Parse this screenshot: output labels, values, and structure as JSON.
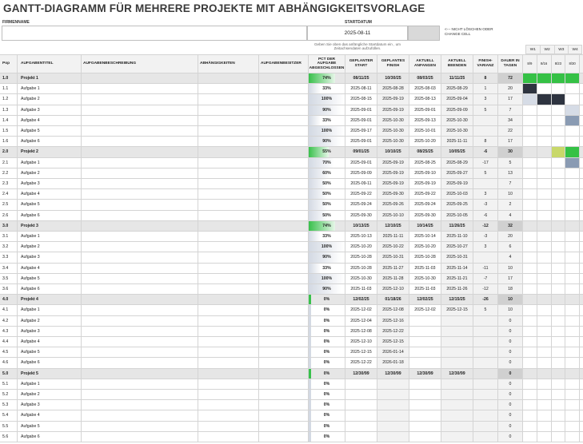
{
  "title": "GANTT-DIAGRAMM FÜR MEHRERE PROJEKTE MIT ABHÄNGIGKEITSVORLAGE",
  "firmenname_label": "FIRMENNAME",
  "startdatum_label": "STARTDATUM",
  "startdatum_value": "2025-08-11",
  "clear_note": "<--- NICHT LÖSCHEN ODER CHANGE CELL",
  "start_note": "Geben Sie oben das anfängliche Startdatum ein , um Zeitachsendaten aufzufüllen.",
  "headers": {
    "num": "Pop",
    "title": "AUFGABENTITEL",
    "desc": "AUFGABENBESCHREIBUNG",
    "dep": "ABHÄNGIGKEITEN",
    "owner": "AUFGABENBESITZER",
    "pct": "PCT DER AUFGABE ABGESCHLOSSEN",
    "ps": "GEPLANTER START",
    "pf": "GEPLANTES FINISH",
    "as": "AKTUELL ANFANGEN",
    "af": "AKTUELL BEENDEN",
    "var": "FINISH-VARIANZ",
    "dur": "DAUER IN TAGEN"
  },
  "weeks": [
    {
      "label": "W1",
      "date": "8/9"
    },
    {
      "label": "W2",
      "date": "8/16"
    },
    {
      "label": "W3",
      "date": "8/23"
    },
    {
      "label": "W4",
      "date": "8/30"
    }
  ],
  "colors": {
    "green": "#35c145",
    "dark": "#2e3440",
    "slate": "#8a9bb3",
    "olive": "#c8d86a",
    "lightblue": "#d6dce6"
  },
  "rows": [
    {
      "num": "1.0",
      "title": "Projekt 1",
      "pct": "74%",
      "pctv": 0.74,
      "ps": "08/11/25",
      "pf": "10/30/25",
      "as": "08/03/25",
      "af": "11/11/25",
      "var": "8",
      "dur": "72",
      "proj": true,
      "w": [
        "green",
        "green",
        "green",
        "green"
      ]
    },
    {
      "num": "1.1",
      "title": "Aufgabe 1",
      "pct": "33%",
      "pctv": 0.33,
      "ps": "2025-08-11",
      "pf": "2025-08-28",
      "as": "2025-08-03",
      "af": "2025-08-29",
      "var": "1",
      "dur": "20",
      "w": [
        "dark",
        "",
        "",
        ""
      ]
    },
    {
      "num": "1.2",
      "title": "Aufgabe 2",
      "pct": "100%",
      "pctv": 1.0,
      "ps": "2025-08-15",
      "pf": "2025-09-19",
      "as": "2025-08-13",
      "af": "2025-09-04",
      "var": "3",
      "dur": "17",
      "w": [
        "lightblue",
        "dark",
        "dark",
        ""
      ]
    },
    {
      "num": "1.3",
      "title": "Aufgabe 3",
      "pct": "90%",
      "pctv": 0.9,
      "ps": "2025-09-01",
      "pf": "2025-09-19",
      "as": "2025-09-01",
      "af": "2025-09-09",
      "var": "5",
      "dur": "7",
      "w": [
        "",
        "",
        "",
        "lightblue"
      ]
    },
    {
      "num": "1.4",
      "title": "Aufgabe 4",
      "pct": "33%",
      "pctv": 0.33,
      "ps": "2025-09-01",
      "pf": "2025-10-30",
      "as": "2025-09-13",
      "af": "2025-10-30",
      "var": "",
      "dur": "34",
      "w": [
        "",
        "",
        "",
        "slate"
      ]
    },
    {
      "num": "1.5",
      "title": "Aufgabe 5",
      "pct": "100%",
      "pctv": 1.0,
      "ps": "2025-09-17",
      "pf": "2025-10-30",
      "as": "2025-10-01",
      "af": "2025-10-30",
      "var": "",
      "dur": "22",
      "w": [
        "",
        "",
        "",
        ""
      ]
    },
    {
      "num": "1.6",
      "title": "Aufgabe 6",
      "pct": "90%",
      "pctv": 0.9,
      "ps": "2025-09-01",
      "pf": "2025-10-30",
      "as": "2025-10-20",
      "af": "2025-11-11",
      "var": "8",
      "dur": "17",
      "w": [
        "",
        "",
        "",
        ""
      ]
    },
    {
      "num": "2.0",
      "title": "Projekt 2",
      "pct": "55%",
      "pctv": 0.55,
      "ps": "09/01/25",
      "pf": "10/10/25",
      "as": "08/25/25",
      "af": "10/05/25",
      "var": "-6",
      "dur": "30",
      "proj": true,
      "w": [
        "",
        "",
        "olive",
        "green"
      ]
    },
    {
      "num": "2.1",
      "title": "Aufgabe 1",
      "pct": "70%",
      "pctv": 0.7,
      "ps": "2025-09-01",
      "pf": "2025-09-19",
      "as": "2025-08-25",
      "af": "2025-08-29",
      "var": "-17",
      "dur": "5",
      "w": [
        "",
        "",
        "",
        "slate"
      ]
    },
    {
      "num": "2.2",
      "title": "Aufgabe 2",
      "pct": "60%",
      "pctv": 0.6,
      "ps": "2025-09-09",
      "pf": "2025-09-19",
      "as": "2025-09-10",
      "af": "2025-09-27",
      "var": "5",
      "dur": "13",
      "w": [
        "",
        "",
        "",
        ""
      ]
    },
    {
      "num": "2.3",
      "title": "Aufgabe 3",
      "pct": "50%",
      "pctv": 0.5,
      "ps": "2025-09-11",
      "pf": "2025-09-19",
      "as": "2025-09-19",
      "af": "2025-09-19",
      "var": "",
      "dur": "7",
      "w": [
        "",
        "",
        "",
        ""
      ]
    },
    {
      "num": "2.4",
      "title": "Aufgabe 4",
      "pct": "50%",
      "pctv": 0.5,
      "ps": "2025-09-22",
      "pf": "2025-09-30",
      "as": "2025-09-22",
      "af": "2025-10-03",
      "var": "3",
      "dur": "10",
      "w": [
        "",
        "",
        "",
        ""
      ]
    },
    {
      "num": "2.5",
      "title": "Aufgabe 5",
      "pct": "50%",
      "pctv": 0.5,
      "ps": "2025-09-24",
      "pf": "2025-09-26",
      "as": "2025-09-24",
      "af": "2025-09-25",
      "var": "-3",
      "dur": "2",
      "w": [
        "",
        "",
        "",
        ""
      ]
    },
    {
      "num": "2.6",
      "title": "Aufgabe 6",
      "pct": "50%",
      "pctv": 0.5,
      "ps": "2025-09-30",
      "pf": "2025-10-10",
      "as": "2025-09-30",
      "af": "2025-10-05",
      "var": "-6",
      "dur": "4",
      "w": [
        "",
        "",
        "",
        ""
      ]
    },
    {
      "num": "3.0",
      "title": "Projekt 3",
      "pct": "74%",
      "pctv": 0.74,
      "ps": "10/13/25",
      "pf": "12/10/25",
      "as": "10/14/25",
      "af": "11/26/25",
      "var": "-12",
      "dur": "32",
      "proj": true,
      "w": [
        "",
        "",
        "",
        ""
      ]
    },
    {
      "num": "3.1",
      "title": "Aufgabe 1",
      "pct": "33%",
      "pctv": 0.33,
      "ps": "2025-10-13",
      "pf": "2025-11-11",
      "as": "2025-10-14",
      "af": "2025-11-10",
      "var": "-3",
      "dur": "20",
      "w": [
        "",
        "",
        "",
        ""
      ]
    },
    {
      "num": "3.2",
      "title": "Aufgabe 2",
      "pct": "100%",
      "pctv": 1.0,
      "ps": "2025-10-20",
      "pf": "2025-10-22",
      "as": "2025-10-20",
      "af": "2025-10-27",
      "var": "3",
      "dur": "6",
      "w": [
        "",
        "",
        "",
        ""
      ]
    },
    {
      "num": "3.3",
      "title": "Aufgabe 3",
      "pct": "90%",
      "pctv": 0.9,
      "ps": "2025-10-28",
      "pf": "2025-10-31",
      "as": "2025-10-28",
      "af": "2025-10-31",
      "var": "",
      "dur": "4",
      "w": [
        "",
        "",
        "",
        ""
      ]
    },
    {
      "num": "3.4",
      "title": "Aufgabe 4",
      "pct": "33%",
      "pctv": 0.33,
      "ps": "2025-10-28",
      "pf": "2025-11-27",
      "as": "2025-11-03",
      "af": "2025-11-14",
      "var": "-11",
      "dur": "10",
      "w": [
        "",
        "",
        "",
        ""
      ]
    },
    {
      "num": "3.5",
      "title": "Aufgabe 5",
      "pct": "100%",
      "pctv": 1.0,
      "ps": "2025-10-30",
      "pf": "2025-11-28",
      "as": "2025-10-30",
      "af": "2025-11-21",
      "var": "-7",
      "dur": "17",
      "w": [
        "",
        "",
        "",
        ""
      ]
    },
    {
      "num": "3.6",
      "title": "Aufgabe 6",
      "pct": "90%",
      "pctv": 0.9,
      "ps": "2025-11-03",
      "pf": "2025-12-10",
      "as": "2025-11-03",
      "af": "2025-11-26",
      "var": "-12",
      "dur": "18",
      "w": [
        "",
        "",
        "",
        ""
      ]
    },
    {
      "num": "4.0",
      "title": "Projekt 4",
      "pct": "0%",
      "pctv": 0.0,
      "ps": "12/02/25",
      "pf": "01/18/26",
      "as": "12/02/25",
      "af": "12/15/25",
      "var": "-26",
      "dur": "10",
      "proj": true,
      "w": [
        "",
        "",
        "",
        ""
      ]
    },
    {
      "num": "4.1",
      "title": "Aufgabe 1",
      "pct": "0%",
      "pctv": 0.0,
      "ps": "2025-12-02",
      "pf": "2025-12-08",
      "as": "2025-12-02",
      "af": "2025-12-15",
      "var": "5",
      "dur": "10",
      "w": [
        "",
        "",
        "",
        ""
      ]
    },
    {
      "num": "4.2",
      "title": "Aufgabe 2",
      "pct": "0%",
      "pctv": 0.0,
      "ps": "2025-12-04",
      "pf": "2025-12-16",
      "as": "",
      "af": "",
      "var": "",
      "dur": "0",
      "w": [
        "",
        "",
        "",
        ""
      ]
    },
    {
      "num": "4.3",
      "title": "Aufgabe 3",
      "pct": "0%",
      "pctv": 0.0,
      "ps": "2025-12-08",
      "pf": "2025-12-22",
      "as": "",
      "af": "",
      "var": "",
      "dur": "0",
      "w": [
        "",
        "",
        "",
        ""
      ]
    },
    {
      "num": "4.4",
      "title": "Aufgabe 4",
      "pct": "0%",
      "pctv": 0.0,
      "ps": "2025-12-10",
      "pf": "2025-12-15",
      "as": "",
      "af": "",
      "var": "",
      "dur": "0",
      "w": [
        "",
        "",
        "",
        ""
      ]
    },
    {
      "num": "4.5",
      "title": "Aufgabe 5",
      "pct": "0%",
      "pctv": 0.0,
      "ps": "2025-12-15",
      "pf": "2026-01-14",
      "as": "",
      "af": "",
      "var": "",
      "dur": "0",
      "w": [
        "",
        "",
        "",
        ""
      ]
    },
    {
      "num": "4.6",
      "title": "Aufgabe 6",
      "pct": "0%",
      "pctv": 0.0,
      "ps": "2025-12-22",
      "pf": "2026-01-18",
      "as": "",
      "af": "",
      "var": "",
      "dur": "0",
      "w": [
        "",
        "",
        "",
        ""
      ]
    },
    {
      "num": "5.0",
      "title": "Projekt 5",
      "pct": "0%",
      "pctv": 0.0,
      "ps": "12/30/99",
      "pf": "12/30/99",
      "as": "12/30/99",
      "af": "12/30/99",
      "var": "",
      "dur": "0",
      "proj": true,
      "w": [
        "",
        "",
        "",
        ""
      ]
    },
    {
      "num": "5.1",
      "title": "Aufgabe 1",
      "pct": "0%",
      "pctv": 0.0,
      "ps": "",
      "pf": "",
      "as": "",
      "af": "",
      "var": "",
      "dur": "0",
      "w": [
        "",
        "",
        "",
        ""
      ]
    },
    {
      "num": "5.2",
      "title": "Aufgabe 2",
      "pct": "0%",
      "pctv": 0.0,
      "ps": "",
      "pf": "",
      "as": "",
      "af": "",
      "var": "",
      "dur": "0",
      "w": [
        "",
        "",
        "",
        ""
      ]
    },
    {
      "num": "5.3",
      "title": "Aufgabe 3",
      "pct": "0%",
      "pctv": 0.0,
      "ps": "",
      "pf": "",
      "as": "",
      "af": "",
      "var": "",
      "dur": "0",
      "w": [
        "",
        "",
        "",
        ""
      ]
    },
    {
      "num": "5.4",
      "title": "Aufgabe 4",
      "pct": "0%",
      "pctv": 0.0,
      "ps": "",
      "pf": "",
      "as": "",
      "af": "",
      "var": "",
      "dur": "0",
      "w": [
        "",
        "",
        "",
        ""
      ]
    },
    {
      "num": "5.5",
      "title": "Aufgabe 5",
      "pct": "0%",
      "pctv": 0.0,
      "ps": "",
      "pf": "",
      "as": "",
      "af": "",
      "var": "",
      "dur": "0",
      "w": [
        "",
        "",
        "",
        ""
      ]
    },
    {
      "num": "5.6",
      "title": "Aufgabe 6",
      "pct": "0%",
      "pctv": 0.0,
      "ps": "",
      "pf": "",
      "as": "",
      "af": "",
      "var": "",
      "dur": "0",
      "w": [
        "",
        "",
        "",
        ""
      ]
    }
  ]
}
